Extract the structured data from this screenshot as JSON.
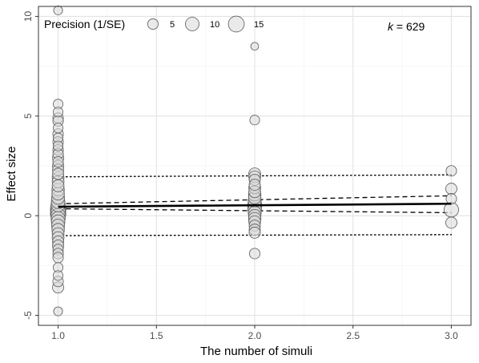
{
  "chart_data": {
    "type": "scatter",
    "title": "",
    "xlabel": "The number of simuli",
    "ylabel": "Effect size",
    "xlim": [
      0.9,
      3.1
    ],
    "ylim": [
      -5.5,
      10.5
    ],
    "x_ticks": [
      1.0,
      1.5,
      2.0,
      2.5,
      3.0
    ],
    "x_tick_labels": [
      "1.0",
      "1.5",
      "2.0",
      "2.5",
      "3.0"
    ],
    "y_ticks": [
      -5,
      0,
      5,
      10
    ],
    "y_tick_labels": [
      "-5",
      "0",
      "5",
      "10"
    ],
    "grid": true,
    "legend": {
      "title": "Precision (1/SE)",
      "position": "top-left",
      "sizes": [
        5,
        10,
        15
      ],
      "labels": [
        "5",
        "10",
        "15"
      ]
    },
    "annotation": {
      "italic": "k",
      "rest": " = 629"
    },
    "regression_line": {
      "x": [
        1.0,
        3.0
      ],
      "y": [
        0.45,
        0.6
      ]
    },
    "confidence_band": {
      "x": [
        1.0,
        3.0
      ],
      "lower": [
        0.35,
        0.15
      ],
      "upper": [
        0.6,
        1.0
      ]
    },
    "prediction_band": {
      "x": [
        1.0,
        3.0
      ],
      "lower": [
        -1.0,
        -0.95
      ],
      "upper": [
        1.95,
        2.05
      ]
    },
    "points": [
      {
        "x": 1,
        "y": 10.3,
        "p": 3
      },
      {
        "x": 1,
        "y": 5.6,
        "p": 4
      },
      {
        "x": 1,
        "y": 5.2,
        "p": 4
      },
      {
        "x": 1,
        "y": 4.9,
        "p": 5
      },
      {
        "x": 1,
        "y": 4.75,
        "p": 5
      },
      {
        "x": 1,
        "y": 4.4,
        "p": 4
      },
      {
        "x": 1,
        "y": 4.1,
        "p": 5
      },
      {
        "x": 1,
        "y": 3.9,
        "p": 4
      },
      {
        "x": 1,
        "y": 3.7,
        "p": 5
      },
      {
        "x": 1,
        "y": 3.5,
        "p": 4
      },
      {
        "x": 1,
        "y": 3.3,
        "p": 5
      },
      {
        "x": 1,
        "y": 3.1,
        "p": 5
      },
      {
        "x": 1,
        "y": 2.9,
        "p": 6
      },
      {
        "x": 1,
        "y": 2.7,
        "p": 5
      },
      {
        "x": 1,
        "y": 2.5,
        "p": 6
      },
      {
        "x": 1,
        "y": 2.3,
        "p": 6
      },
      {
        "x": 1,
        "y": 2.1,
        "p": 6
      },
      {
        "x": 1,
        "y": 1.9,
        "p": 7
      },
      {
        "x": 1,
        "y": 1.7,
        "p": 7
      },
      {
        "x": 1,
        "y": 1.5,
        "p": 7
      },
      {
        "x": 1,
        "y": 1.3,
        "p": 8
      },
      {
        "x": 1,
        "y": 1.1,
        "p": 8
      },
      {
        "x": 1,
        "y": 0.9,
        "p": 9
      },
      {
        "x": 1,
        "y": 0.7,
        "p": 10
      },
      {
        "x": 1,
        "y": 0.55,
        "p": 11
      },
      {
        "x": 1,
        "y": 0.4,
        "p": 13
      },
      {
        "x": 1,
        "y": 0.3,
        "p": 14
      },
      {
        "x": 1,
        "y": 0.2,
        "p": 12
      },
      {
        "x": 1,
        "y": 0.1,
        "p": 14
      },
      {
        "x": 1,
        "y": 0.0,
        "p": 12
      },
      {
        "x": 1,
        "y": -0.15,
        "p": 11
      },
      {
        "x": 1,
        "y": -0.3,
        "p": 10
      },
      {
        "x": 1,
        "y": -0.5,
        "p": 9
      },
      {
        "x": 1,
        "y": -0.7,
        "p": 8
      },
      {
        "x": 1,
        "y": -0.9,
        "p": 7
      },
      {
        "x": 1,
        "y": -1.1,
        "p": 7
      },
      {
        "x": 1,
        "y": -1.3,
        "p": 6
      },
      {
        "x": 1,
        "y": -1.5,
        "p": 6
      },
      {
        "x": 1,
        "y": -1.7,
        "p": 5
      },
      {
        "x": 1,
        "y": -1.9,
        "p": 5
      },
      {
        "x": 1,
        "y": -2.1,
        "p": 5
      },
      {
        "x": 1,
        "y": -2.6,
        "p": 4
      },
      {
        "x": 1,
        "y": -3.0,
        "p": 4
      },
      {
        "x": 1,
        "y": -3.3,
        "p": 5
      },
      {
        "x": 1,
        "y": -3.6,
        "p": 6
      },
      {
        "x": 1,
        "y": -4.8,
        "p": 3
      },
      {
        "x": 2,
        "y": 8.5,
        "p": 2
      },
      {
        "x": 2,
        "y": 4.8,
        "p": 4
      },
      {
        "x": 2,
        "y": 2.1,
        "p": 7
      },
      {
        "x": 2,
        "y": 1.95,
        "p": 7
      },
      {
        "x": 2,
        "y": 1.8,
        "p": 6
      },
      {
        "x": 2,
        "y": 1.55,
        "p": 6
      },
      {
        "x": 2,
        "y": 1.4,
        "p": 7
      },
      {
        "x": 2,
        "y": 1.2,
        "p": 7
      },
      {
        "x": 2,
        "y": 1.05,
        "p": 8
      },
      {
        "x": 2,
        "y": 0.9,
        "p": 8
      },
      {
        "x": 2,
        "y": 0.75,
        "p": 9
      },
      {
        "x": 2,
        "y": 0.6,
        "p": 10
      },
      {
        "x": 2,
        "y": 0.45,
        "p": 11
      },
      {
        "x": 2,
        "y": 0.3,
        "p": 10
      },
      {
        "x": 2,
        "y": 0.15,
        "p": 9
      },
      {
        "x": 2,
        "y": 0.0,
        "p": 8
      },
      {
        "x": 2,
        "y": -0.15,
        "p": 8
      },
      {
        "x": 2,
        "y": -0.3,
        "p": 7
      },
      {
        "x": 2,
        "y": -0.5,
        "p": 6
      },
      {
        "x": 2,
        "y": -0.7,
        "p": 6
      },
      {
        "x": 2,
        "y": -0.85,
        "p": 6
      },
      {
        "x": 2,
        "y": -1.9,
        "p": 5
      },
      {
        "x": 3,
        "y": 2.25,
        "p": 5
      },
      {
        "x": 3,
        "y": 1.35,
        "p": 6
      },
      {
        "x": 3,
        "y": 0.85,
        "p": 5
      },
      {
        "x": 3,
        "y": 0.3,
        "p": 12
      },
      {
        "x": 3,
        "y": -0.35,
        "p": 6
      }
    ]
  }
}
